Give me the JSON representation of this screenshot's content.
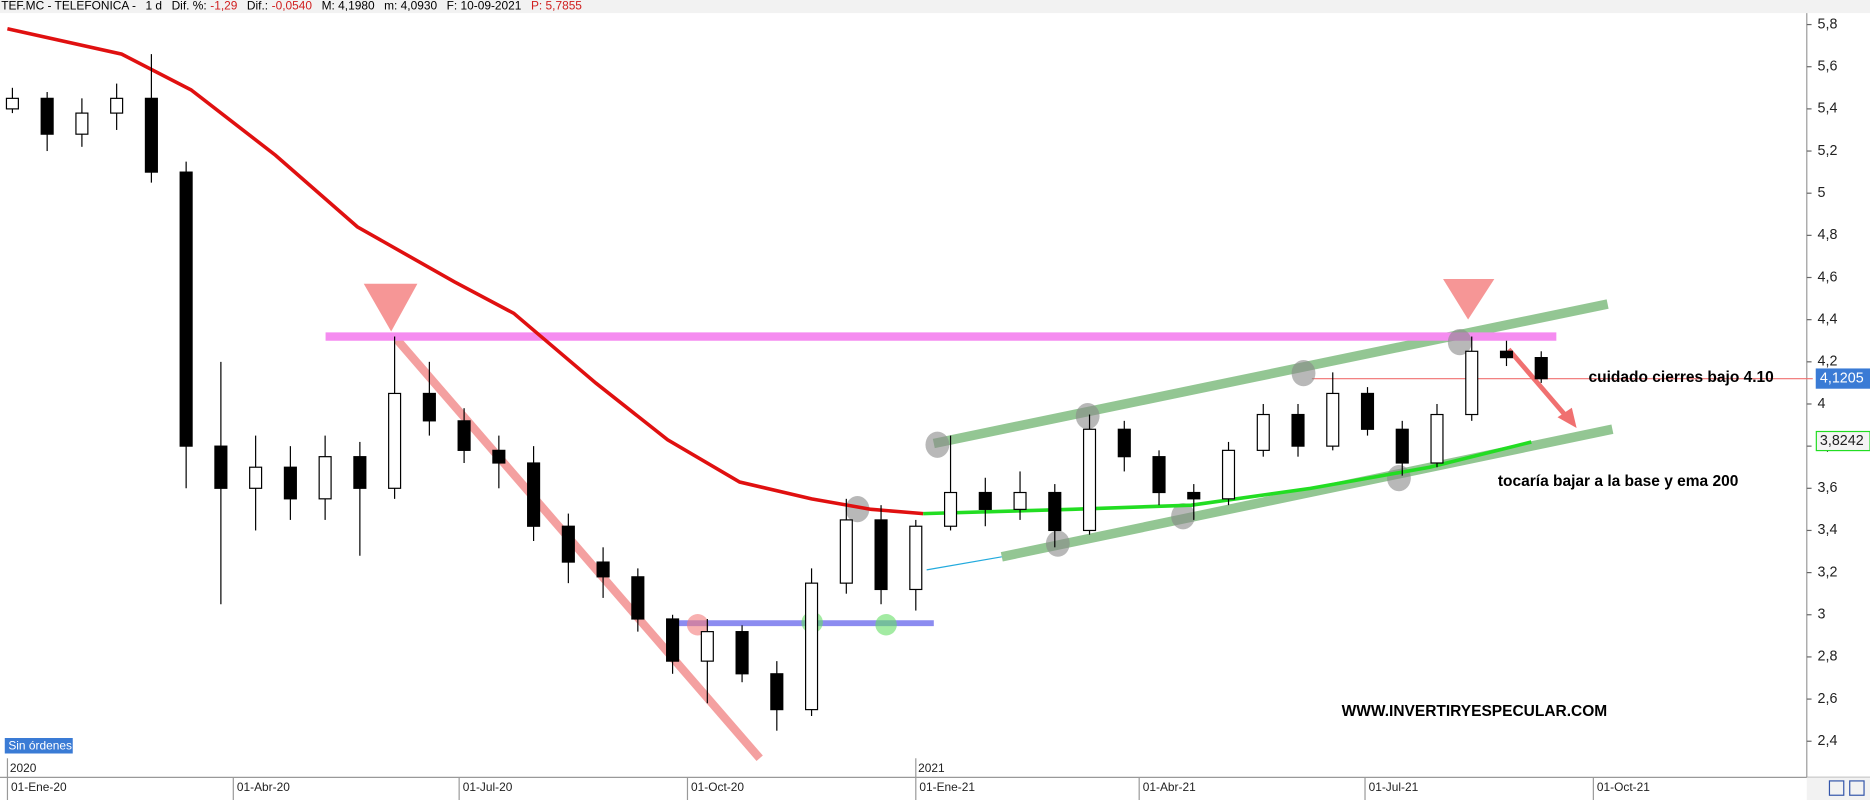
{
  "chart_data": {
    "type": "candlestick",
    "header": [
      {
        "text": "TEF.MC - TELEFONICA -",
        "color": "#000000"
      },
      {
        "text": "1 d",
        "color": "#000000"
      },
      {
        "text": "Dif. %:",
        "color": "#000000"
      },
      {
        "text": "-1,29",
        "color": "#d02020"
      },
      {
        "text": "Dif.:",
        "color": "#000000"
      },
      {
        "text": "-0,0540",
        "color": "#d02020"
      },
      {
        "text": "M: 4,1980",
        "color": "#000000"
      },
      {
        "text": "m: 4,0930",
        "color": "#000000"
      },
      {
        "text": "F: 10-09-2021",
        "color": "#000000"
      },
      {
        "text": "P: 5,7855",
        "color": "#d02020"
      }
    ],
    "x": [
      "2020-01-03",
      "2020-01-17",
      "2020-01-31",
      "2020-02-14",
      "2020-02-28",
      "2020-03-13",
      "2020-03-27",
      "2020-04-10",
      "2020-04-24",
      "2020-05-08",
      "2020-05-22",
      "2020-06-05",
      "2020-06-19",
      "2020-07-03",
      "2020-07-17",
      "2020-07-31",
      "2020-08-14",
      "2020-08-28",
      "2020-09-11",
      "2020-09-25",
      "2020-10-09",
      "2020-10-23",
      "2020-11-06",
      "2020-11-20",
      "2020-12-04",
      "2020-12-18",
      "2021-01-01",
      "2021-01-15",
      "2021-01-29",
      "2021-02-12",
      "2021-02-26",
      "2021-03-12",
      "2021-03-26",
      "2021-04-09",
      "2021-04-23",
      "2021-05-07",
      "2021-05-21",
      "2021-06-04",
      "2021-06-18",
      "2021-07-02",
      "2021-07-16",
      "2021-07-30",
      "2021-08-13",
      "2021-08-27",
      "2021-09-10"
    ],
    "open": [
      5.4,
      5.45,
      5.28,
      5.38,
      5.45,
      5.1,
      3.8,
      3.6,
      3.7,
      3.55,
      3.75,
      3.6,
      4.05,
      3.92,
      3.78,
      3.72,
      3.42,
      3.25,
      3.18,
      2.98,
      2.78,
      2.92,
      2.72,
      2.55,
      3.15,
      3.45,
      3.12,
      3.42,
      3.58,
      3.5,
      3.58,
      3.4,
      3.88,
      3.75,
      3.58,
      3.55,
      3.78,
      3.95,
      3.8,
      4.05,
      3.88,
      3.72,
      3.95,
      4.25,
      4.22
    ],
    "high": [
      5.5,
      5.48,
      5.45,
      5.52,
      5.66,
      5.15,
      4.2,
      3.85,
      3.8,
      3.85,
      3.82,
      4.32,
      4.2,
      3.98,
      3.85,
      3.8,
      3.48,
      3.32,
      3.22,
      3.0,
      2.98,
      2.95,
      2.78,
      3.22,
      3.55,
      3.52,
      3.45,
      3.85,
      3.65,
      3.68,
      3.62,
      3.95,
      3.92,
      3.78,
      3.62,
      3.82,
      4.0,
      4.0,
      4.15,
      4.08,
      3.92,
      4.0,
      4.32,
      4.3,
      4.25
    ],
    "low": [
      5.38,
      5.2,
      5.22,
      5.3,
      5.05,
      3.6,
      3.05,
      3.4,
      3.45,
      3.45,
      3.28,
      3.55,
      3.85,
      3.72,
      3.6,
      3.35,
      3.15,
      3.08,
      2.92,
      2.72,
      2.58,
      2.68,
      2.45,
      2.52,
      3.1,
      3.05,
      3.02,
      3.4,
      3.42,
      3.45,
      3.32,
      3.38,
      3.68,
      3.52,
      3.45,
      3.52,
      3.75,
      3.75,
      3.78,
      3.85,
      3.66,
      3.7,
      3.92,
      4.18,
      4.1
    ],
    "close": [
      5.45,
      5.28,
      5.38,
      5.45,
      5.1,
      3.8,
      3.6,
      3.7,
      3.55,
      3.75,
      3.6,
      4.05,
      3.92,
      3.78,
      3.72,
      3.42,
      3.25,
      3.18,
      2.98,
      2.78,
      2.92,
      2.72,
      2.55,
      3.15,
      3.45,
      3.12,
      3.42,
      3.58,
      3.5,
      3.58,
      3.4,
      3.88,
      3.75,
      3.58,
      3.55,
      3.78,
      3.95,
      3.8,
      4.05,
      3.88,
      3.72,
      3.95,
      4.25,
      4.22,
      4.12
    ],
    "overlays": [
      {
        "color": "#e01010",
        "x": [
          "2020-01-01",
          "2020-02-16",
          "2020-03-15",
          "2020-04-18",
          "2020-05-21",
          "2020-06-29",
          "2020-07-23",
          "2020-08-25",
          "2020-09-23",
          "2020-10-22",
          "2020-11-20",
          "2020-12-14",
          "2021-01-04"
        ],
        "values": [
          5.78,
          5.66,
          5.49,
          5.18,
          4.84,
          4.58,
          4.43,
          4.1,
          3.83,
          3.63,
          3.55,
          3.5,
          3.48
        ]
      },
      {
        "color": "#22dd22",
        "x": [
          "2021-01-04",
          "2021-03-05",
          "2021-04-22",
          "2021-06-09",
          "2021-07-27",
          "2021-09-06"
        ],
        "values": [
          3.48,
          3.5,
          3.52,
          3.6,
          3.7,
          3.82
        ]
      }
    ],
    "levels": [
      {
        "value": 4.32,
        "color": "#f58cf0"
      },
      {
        "value": 2.96,
        "color": "#8c8cf0"
      },
      {
        "value": 4.12,
        "color": "#f07070"
      }
    ],
    "last_price": {
      "value": 4.1205,
      "label": "4,1205"
    },
    "ema_last": {
      "value": 3.8242,
      "label": "3,8242"
    },
    "annotations": [
      "cuidado cierres bajo 4.10",
      "tocaría bajar a la base y ema 200",
      "WWW.INVERTIRYESPECULAR.COM"
    ],
    "status": "Sin órdenes",
    "xlim": [
      "2019-12-29",
      "2021-12-26"
    ],
    "xticks": [
      {
        "value": "2020-01-01",
        "label": "01-Ene-20"
      },
      {
        "value": "2020-04-01",
        "label": "01-Abr-20"
      },
      {
        "value": "2020-07-01",
        "label": "01-Jul-20"
      },
      {
        "value": "2020-10-01",
        "label": "01-Oct-20"
      },
      {
        "value": "2021-01-01",
        "label": "01-Ene-21"
      },
      {
        "value": "2021-04-01",
        "label": "01-Abr-21"
      },
      {
        "value": "2021-07-01",
        "label": "01-Jul-21"
      },
      {
        "value": "2021-10-01",
        "label": "01-Oct-21"
      }
    ],
    "year_labels": [
      {
        "value": "2020-01-01",
        "label": "2020"
      },
      {
        "value": "2021-01-01",
        "label": "2021"
      }
    ],
    "ylim": [
      2.24,
      5.86
    ],
    "yticks": [
      {
        "value": 2.4,
        "label": "2,4"
      },
      {
        "value": 2.6,
        "label": "2,6"
      },
      {
        "value": 2.8,
        "label": "2,8"
      },
      3,
      {
        "value": 3.2,
        "label": "3,2"
      },
      {
        "value": 3.4,
        "label": "3,4"
      },
      {
        "value": 3.6,
        "label": "3,6"
      },
      {
        "value": 3.8,
        "label": "3,8"
      },
      4,
      {
        "value": 4.2,
        "label": "4,2"
      },
      {
        "value": 4.4,
        "label": "4,4"
      },
      {
        "value": 4.6,
        "label": "4,6"
      },
      {
        "value": 4.8,
        "label": "4,8"
      },
      5,
      {
        "value": 5.2,
        "label": "5,2"
      },
      {
        "value": 5.4,
        "label": "5,4"
      },
      {
        "value": 5.6,
        "label": "5,6"
      },
      {
        "value": 5.8,
        "label": "5,8"
      }
    ]
  }
}
